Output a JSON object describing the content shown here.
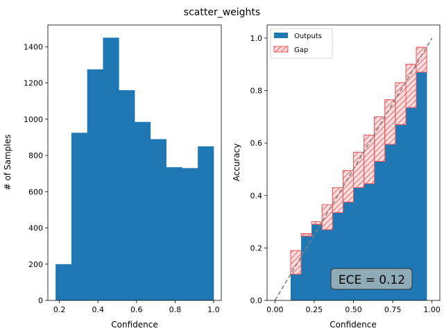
{
  "suptitle": "scatter_weights",
  "chart_data": [
    {
      "type": "bar",
      "name": "histogram",
      "xlabel": "Confidence",
      "ylabel": "# of Samples",
      "xlim": [
        0.14,
        1.04
      ],
      "ylim": [
        0,
        1520
      ],
      "xticks": [
        0.2,
        0.4,
        0.6,
        0.8,
        1.0
      ],
      "xtick_labels": [
        "0.2",
        "0.4",
        "0.6",
        "0.8",
        "1.0"
      ],
      "yticks": [
        0,
        200,
        400,
        600,
        800,
        1000,
        1200,
        1400
      ],
      "ytick_labels": [
        "0",
        "200",
        "400",
        "600",
        "800",
        "1000",
        "1200",
        "1400"
      ],
      "bins": [
        0.18,
        0.262,
        0.344,
        0.426,
        0.508,
        0.59,
        0.672,
        0.754,
        0.836,
        0.918,
        1.0
      ],
      "counts": [
        200,
        925,
        1275,
        1450,
        1160,
        985,
        890,
        735,
        730,
        850
      ],
      "color": "#1f77b4",
      "grid": false
    },
    {
      "type": "bar",
      "name": "reliability-diagram",
      "xlabel": "Confidence",
      "ylabel": "Accuracy",
      "xlim": [
        -0.05,
        1.05
      ],
      "ylim": [
        0,
        1.05
      ],
      "xticks": [
        0.0,
        0.25,
        0.5,
        0.75,
        1.0
      ],
      "xtick_labels": [
        "0.00",
        "0.25",
        "0.50",
        "0.75",
        "1.00"
      ],
      "yticks": [
        0.0,
        0.2,
        0.4,
        0.6,
        0.8,
        1.0
      ],
      "ytick_labels": [
        "0.0",
        "0.2",
        "0.4",
        "0.6",
        "0.8",
        "1.0"
      ],
      "bin_edges": [
        0.1,
        0.1667,
        0.2333,
        0.3,
        0.3667,
        0.4333,
        0.5,
        0.5667,
        0.6333,
        0.7,
        0.7667,
        0.8333,
        0.9,
        0.9667
      ],
      "outputs": [
        0.1,
        0.255,
        0.29,
        0.27,
        0.335,
        0.375,
        0.43,
        0.445,
        0.53,
        0.595,
        0.67,
        0.735,
        0.87
      ],
      "gap_top": [
        0.19,
        0.245,
        0.3,
        0.365,
        0.43,
        0.495,
        0.565,
        0.63,
        0.7,
        0.765,
        0.83,
        0.9,
        0.965
      ],
      "legend": [
        "Outputs",
        "Gap"
      ],
      "legend_position": "top-left",
      "annotation": "ECE = 0.12",
      "outputs_color": "#1f77b4",
      "gap_edge_color": "#e8585c",
      "gap_fill_color": "#fcd6d6",
      "diagonal_color": "#7f7f7f",
      "grid": false
    }
  ]
}
